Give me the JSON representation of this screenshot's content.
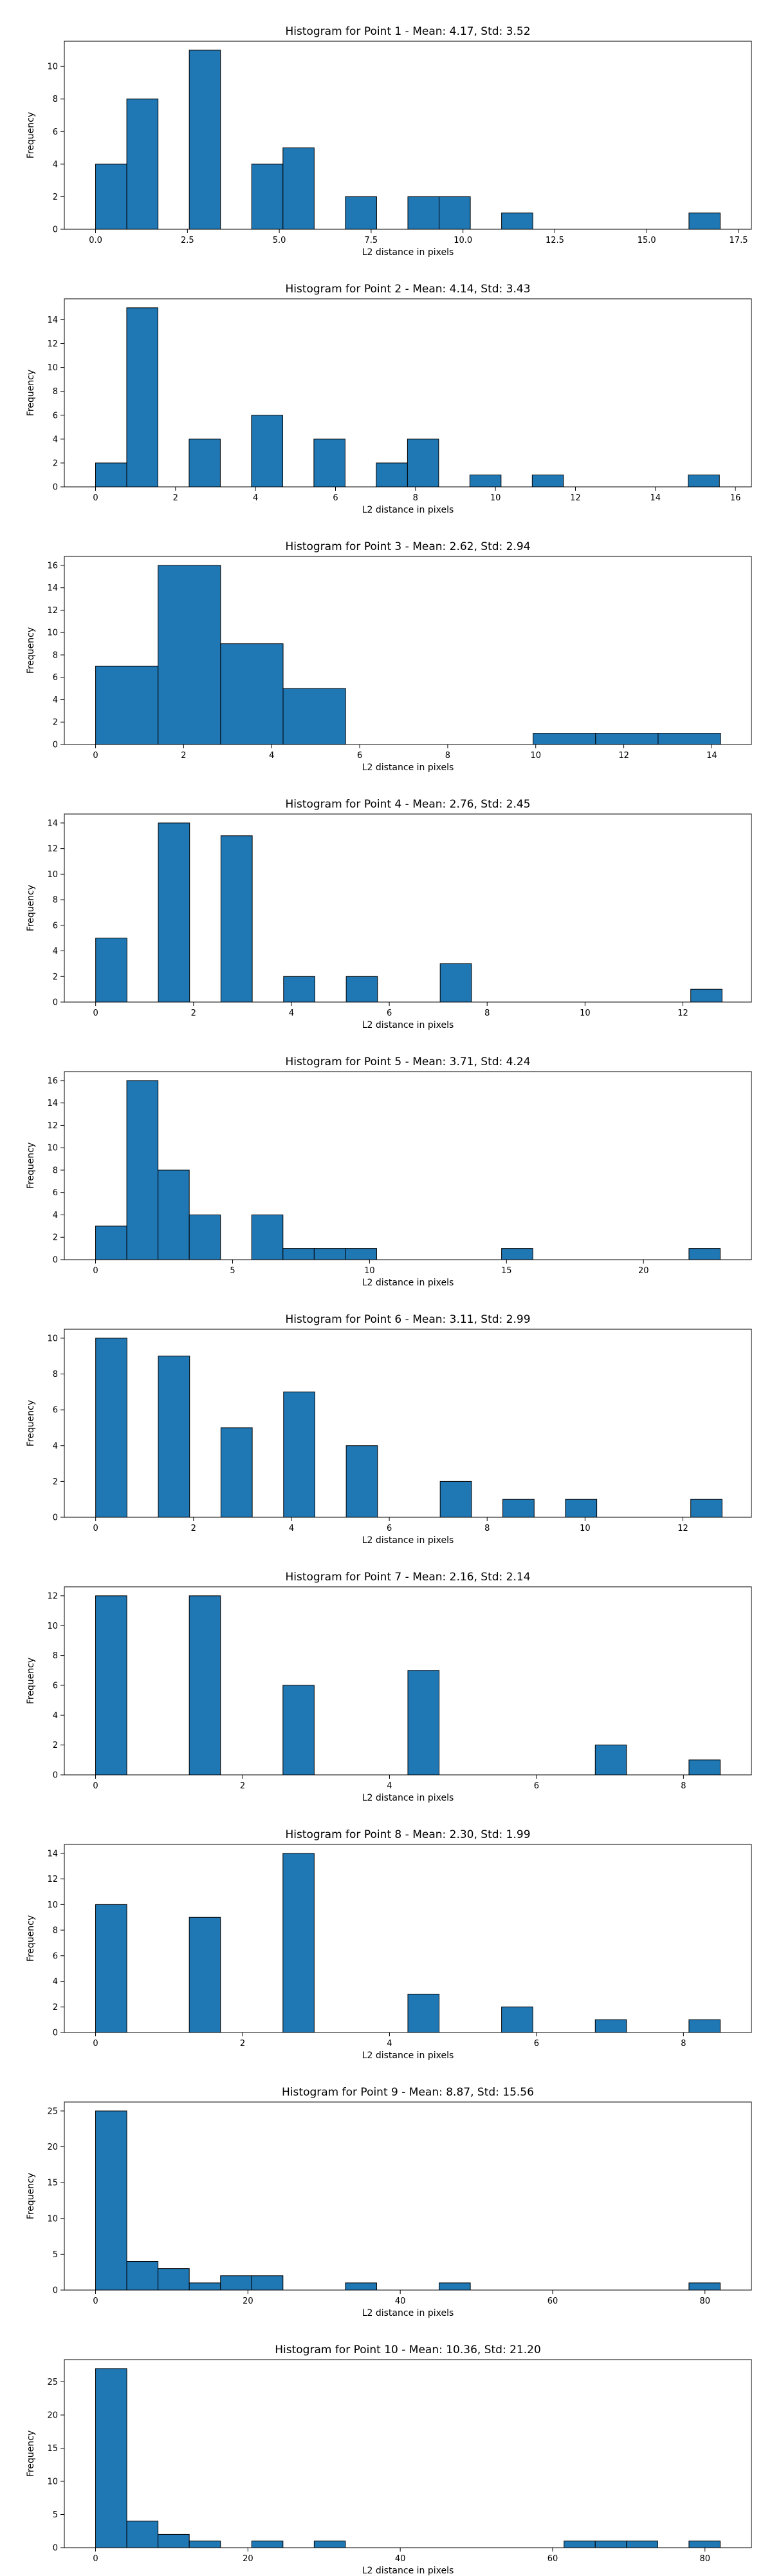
{
  "chart_data": [
    {
      "type": "bar",
      "title": "Histogram for Point 1 - Mean: 4.17, Std: 3.52",
      "xlabel": "L2 distance in pixels",
      "ylabel": "Frequency",
      "xlim": [
        -0.85,
        17.85
      ],
      "ylim": [
        0,
        11.55
      ],
      "xticks": [
        0,
        2.5,
        5,
        7.5,
        10,
        12.5,
        15,
        17.5
      ],
      "xtick_labels": [
        "0.0",
        "2.5",
        "5.0",
        "7.5",
        "10.0",
        "12.5",
        "15.0",
        "17.5"
      ],
      "yticks": [
        0,
        2,
        4,
        6,
        8,
        10
      ],
      "bins": [
        {
          "start": 0.0,
          "end": 0.85,
          "count": 4
        },
        {
          "start": 0.85,
          "end": 1.7,
          "count": 8
        },
        {
          "start": 2.55,
          "end": 3.4,
          "count": 11
        },
        {
          "start": 4.25,
          "end": 5.1,
          "count": 4
        },
        {
          "start": 5.1,
          "end": 5.95,
          "count": 5
        },
        {
          "start": 6.8,
          "end": 7.65,
          "count": 2
        },
        {
          "start": 8.5,
          "end": 9.35,
          "count": 2
        },
        {
          "start": 9.35,
          "end": 10.2,
          "count": 2
        },
        {
          "start": 11.05,
          "end": 11.9,
          "count": 1
        },
        {
          "start": 16.15,
          "end": 17.0,
          "count": 1
        }
      ]
    },
    {
      "type": "bar",
      "title": "Histogram for Point 2 - Mean: 4.14, Std: 3.43",
      "xlabel": "L2 distance in pixels",
      "ylabel": "Frequency",
      "xlim": [
        -0.78,
        16.4
      ],
      "ylim": [
        0,
        15.75
      ],
      "xticks": [
        0,
        2,
        4,
        6,
        8,
        10,
        12,
        14,
        16
      ],
      "xtick_labels": [
        "0",
        "2",
        "4",
        "6",
        "8",
        "10",
        "12",
        "14",
        "16"
      ],
      "yticks": [
        0,
        2,
        4,
        6,
        8,
        10,
        12,
        14
      ],
      "bins": [
        {
          "start": 0.0,
          "end": 0.78,
          "count": 2
        },
        {
          "start": 0.78,
          "end": 1.56,
          "count": 15
        },
        {
          "start": 2.34,
          "end": 3.12,
          "count": 4
        },
        {
          "start": 3.9,
          "end": 4.68,
          "count": 6
        },
        {
          "start": 5.46,
          "end": 6.24,
          "count": 4
        },
        {
          "start": 7.02,
          "end": 7.8,
          "count": 2
        },
        {
          "start": 7.8,
          "end": 8.58,
          "count": 4
        },
        {
          "start": 9.36,
          "end": 10.14,
          "count": 1
        },
        {
          "start": 10.92,
          "end": 11.7,
          "count": 1
        },
        {
          "start": 14.82,
          "end": 15.6,
          "count": 1
        }
      ]
    },
    {
      "type": "bar",
      "title": "Histogram for Point 3 - Mean: 2.62, Std: 2.94",
      "xlabel": "L2 distance in pixels",
      "ylabel": "Frequency",
      "xlim": [
        -0.71,
        14.9
      ],
      "ylim": [
        0,
        16.8
      ],
      "xticks": [
        0,
        2,
        4,
        6,
        8,
        10,
        12,
        14
      ],
      "xtick_labels": [
        "0",
        "2",
        "4",
        "6",
        "8",
        "10",
        "12",
        "14"
      ],
      "yticks": [
        0,
        2,
        4,
        6,
        8,
        10,
        12,
        14,
        16
      ],
      "bins": [
        {
          "start": 0.0,
          "end": 1.42,
          "count": 7
        },
        {
          "start": 1.42,
          "end": 2.84,
          "count": 16
        },
        {
          "start": 2.84,
          "end": 4.26,
          "count": 9
        },
        {
          "start": 4.26,
          "end": 5.68,
          "count": 5
        },
        {
          "start": 9.94,
          "end": 11.36,
          "count": 1
        },
        {
          "start": 11.36,
          "end": 12.78,
          "count": 1
        },
        {
          "start": 12.78,
          "end": 14.2,
          "count": 1
        }
      ]
    },
    {
      "type": "bar",
      "title": "Histogram for Point 4 - Mean: 2.76, Std: 2.45",
      "xlabel": "L2 distance in pixels",
      "ylabel": "Frequency",
      "xlim": [
        -0.64,
        13.4
      ],
      "ylim": [
        0,
        14.7
      ],
      "xticks": [
        0,
        2,
        4,
        6,
        8,
        10,
        12
      ],
      "xtick_labels": [
        "0",
        "2",
        "4",
        "6",
        "8",
        "10",
        "12"
      ],
      "yticks": [
        0,
        2,
        4,
        6,
        8,
        10,
        12,
        14
      ],
      "bins": [
        {
          "start": 0.0,
          "end": 0.64,
          "count": 5
        },
        {
          "start": 1.28,
          "end": 1.92,
          "count": 14
        },
        {
          "start": 2.56,
          "end": 3.2,
          "count": 13
        },
        {
          "start": 3.84,
          "end": 4.48,
          "count": 2
        },
        {
          "start": 5.12,
          "end": 5.76,
          "count": 2
        },
        {
          "start": 7.04,
          "end": 7.68,
          "count": 3
        },
        {
          "start": 12.16,
          "end": 12.8,
          "count": 1
        }
      ]
    },
    {
      "type": "bar",
      "title": "Histogram for Point 5 - Mean: 3.71, Std: 4.24",
      "xlabel": "L2 distance in pixels",
      "ylabel": "Frequency",
      "xlim": [
        -1.14,
        23.94
      ],
      "ylim": [
        0,
        16.8
      ],
      "xticks": [
        0,
        5,
        10,
        15,
        20
      ],
      "xtick_labels": [
        "0",
        "5",
        "10",
        "15",
        "20"
      ],
      "yticks": [
        0,
        2,
        4,
        6,
        8,
        10,
        12,
        14,
        16
      ],
      "bins": [
        {
          "start": 0.0,
          "end": 1.14,
          "count": 3
        },
        {
          "start": 1.14,
          "end": 2.28,
          "count": 16
        },
        {
          "start": 2.28,
          "end": 3.42,
          "count": 8
        },
        {
          "start": 3.42,
          "end": 4.56,
          "count": 4
        },
        {
          "start": 5.7,
          "end": 6.84,
          "count": 4
        },
        {
          "start": 6.84,
          "end": 7.98,
          "count": 1
        },
        {
          "start": 7.98,
          "end": 9.12,
          "count": 1
        },
        {
          "start": 9.12,
          "end": 10.26,
          "count": 1
        },
        {
          "start": 14.82,
          "end": 15.96,
          "count": 1
        },
        {
          "start": 21.66,
          "end": 22.8,
          "count": 1
        }
      ]
    },
    {
      "type": "bar",
      "title": "Histogram for Point 6 - Mean: 3.11, Std: 2.99",
      "xlabel": "L2 distance in pixels",
      "ylabel": "Frequency",
      "xlim": [
        -0.64,
        13.4
      ],
      "ylim": [
        0,
        10.5
      ],
      "xticks": [
        0,
        2,
        4,
        6,
        8,
        10,
        12
      ],
      "xtick_labels": [
        "0",
        "2",
        "4",
        "6",
        "8",
        "10",
        "12"
      ],
      "yticks": [
        0,
        2,
        4,
        6,
        8,
        10
      ],
      "bins": [
        {
          "start": 0.0,
          "end": 0.64,
          "count": 10
        },
        {
          "start": 1.28,
          "end": 1.92,
          "count": 9
        },
        {
          "start": 2.56,
          "end": 3.2,
          "count": 5
        },
        {
          "start": 3.84,
          "end": 4.48,
          "count": 7
        },
        {
          "start": 5.12,
          "end": 5.76,
          "count": 4
        },
        {
          "start": 7.04,
          "end": 7.68,
          "count": 2
        },
        {
          "start": 8.32,
          "end": 8.96,
          "count": 1
        },
        {
          "start": 9.6,
          "end": 10.24,
          "count": 1
        },
        {
          "start": 12.16,
          "end": 12.8,
          "count": 1
        }
      ]
    },
    {
      "type": "bar",
      "title": "Histogram for Point 7 - Mean: 2.16, Std: 2.14",
      "xlabel": "L2 distance in pixels",
      "ylabel": "Frequency",
      "xlim": [
        -0.425,
        8.925
      ],
      "ylim": [
        0,
        12.6
      ],
      "xticks": [
        0,
        2,
        4,
        6,
        8
      ],
      "xtick_labels": [
        "0",
        "2",
        "4",
        "6",
        "8"
      ],
      "yticks": [
        0,
        2,
        4,
        6,
        8,
        10,
        12
      ],
      "bins": [
        {
          "start": 0.0,
          "end": 0.425,
          "count": 12
        },
        {
          "start": 1.275,
          "end": 1.7,
          "count": 12
        },
        {
          "start": 2.55,
          "end": 2.975,
          "count": 6
        },
        {
          "start": 4.25,
          "end": 4.675,
          "count": 7
        },
        {
          "start": 6.8,
          "end": 7.225,
          "count": 2
        },
        {
          "start": 8.075,
          "end": 8.5,
          "count": 1
        }
      ]
    },
    {
      "type": "bar",
      "title": "Histogram for Point 8 - Mean: 2.30, Std: 1.99",
      "xlabel": "L2 distance in pixels",
      "ylabel": "Frequency",
      "xlim": [
        -0.425,
        8.925
      ],
      "ylim": [
        0,
        14.7
      ],
      "xticks": [
        0,
        2,
        4,
        6,
        8
      ],
      "xtick_labels": [
        "0",
        "2",
        "4",
        "6",
        "8"
      ],
      "yticks": [
        0,
        2,
        4,
        6,
        8,
        10,
        12,
        14
      ],
      "bins": [
        {
          "start": 0.0,
          "end": 0.425,
          "count": 10
        },
        {
          "start": 1.275,
          "end": 1.7,
          "count": 9
        },
        {
          "start": 2.55,
          "end": 2.975,
          "count": 14
        },
        {
          "start": 4.25,
          "end": 4.675,
          "count": 3
        },
        {
          "start": 5.525,
          "end": 5.95,
          "count": 2
        },
        {
          "start": 6.8,
          "end": 7.225,
          "count": 1
        },
        {
          "start": 8.075,
          "end": 8.5,
          "count": 1
        }
      ]
    },
    {
      "type": "bar",
      "title": "Histogram for Point 9 - Mean: 8.87, Std: 15.56",
      "xlabel": "L2 distance in pixels",
      "ylabel": "Frequency",
      "xlim": [
        -4.1,
        86.1
      ],
      "ylim": [
        0,
        26.25
      ],
      "xticks": [
        0,
        20,
        40,
        60,
        80
      ],
      "xtick_labels": [
        "0",
        "20",
        "40",
        "60",
        "80"
      ],
      "yticks": [
        0,
        5,
        10,
        15,
        20,
        25
      ],
      "bins": [
        {
          "start": 0.0,
          "end": 4.1,
          "count": 25
        },
        {
          "start": 4.1,
          "end": 8.2,
          "count": 4
        },
        {
          "start": 8.2,
          "end": 12.3,
          "count": 3
        },
        {
          "start": 12.3,
          "end": 16.4,
          "count": 1
        },
        {
          "start": 16.4,
          "end": 20.5,
          "count": 2
        },
        {
          "start": 20.5,
          "end": 24.6,
          "count": 2
        },
        {
          "start": 32.8,
          "end": 36.9,
          "count": 1
        },
        {
          "start": 45.1,
          "end": 49.2,
          "count": 1
        },
        {
          "start": 77.9,
          "end": 82.0,
          "count": 1
        }
      ]
    },
    {
      "type": "bar",
      "title": "Histogram for Point 10 - Mean: 10.36, Std: 21.20",
      "xlabel": "L2 distance in pixels",
      "ylabel": "Frequency",
      "xlim": [
        -4.1,
        86.1
      ],
      "ylim": [
        0,
        28.35
      ],
      "xticks": [
        0,
        20,
        40,
        60,
        80
      ],
      "xtick_labels": [
        "0",
        "20",
        "40",
        "60",
        "80"
      ],
      "yticks": [
        0,
        5,
        10,
        15,
        20,
        25
      ],
      "bins": [
        {
          "start": 0.0,
          "end": 4.1,
          "count": 27
        },
        {
          "start": 4.1,
          "end": 8.2,
          "count": 4
        },
        {
          "start": 8.2,
          "end": 12.3,
          "count": 2
        },
        {
          "start": 12.3,
          "end": 16.4,
          "count": 1
        },
        {
          "start": 20.5,
          "end": 24.6,
          "count": 1
        },
        {
          "start": 28.7,
          "end": 32.8,
          "count": 1
        },
        {
          "start": 61.5,
          "end": 65.6,
          "count": 1
        },
        {
          "start": 65.6,
          "end": 69.7,
          "count": 1
        },
        {
          "start": 69.7,
          "end": 73.8,
          "count": 1
        },
        {
          "start": 77.9,
          "end": 82.0,
          "count": 1
        }
      ]
    }
  ],
  "colors": {
    "bar_fill": "#1f77b4",
    "bar_edge": "#000000",
    "background": "#ffffff"
  }
}
